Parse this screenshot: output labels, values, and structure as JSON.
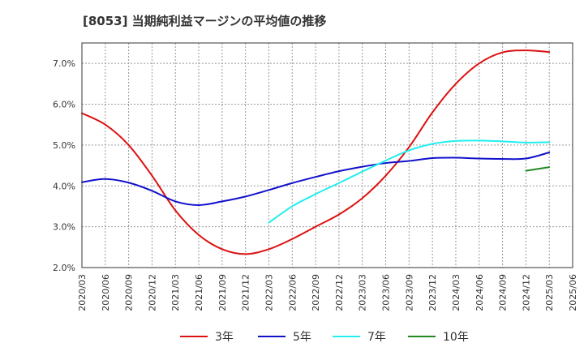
{
  "chart_data": {
    "type": "line",
    "title": "[8053]  当期純利益マージンの平均値の推移",
    "xlabel": "",
    "ylabel": "",
    "ylim": [
      2.0,
      7.5
    ],
    "y_ticks": [
      2.0,
      3.0,
      4.0,
      5.0,
      6.0,
      7.0
    ],
    "y_tick_labels": [
      "2.0%",
      "3.0%",
      "4.0%",
      "5.0%",
      "6.0%",
      "7.0%"
    ],
    "x_ticks": [
      "2020/03",
      "2020/06",
      "2020/09",
      "2020/12",
      "2021/03",
      "2021/06",
      "2021/09",
      "2021/12",
      "2022/03",
      "2022/06",
      "2022/09",
      "2022/12",
      "2023/03",
      "2023/06",
      "2023/09",
      "2023/12",
      "2024/03",
      "2024/06",
      "2024/09",
      "2024/12",
      "2025/03",
      "2025/06"
    ],
    "grid": true,
    "legend_position": "bottom",
    "series": [
      {
        "name": "3年",
        "color": "#dd1111",
        "x": [
          "2020/03",
          "2020/06",
          "2020/09",
          "2020/12",
          "2021/03",
          "2021/06",
          "2021/09",
          "2021/12",
          "2022/03",
          "2022/06",
          "2022/09",
          "2022/12",
          "2023/03",
          "2023/06",
          "2023/09",
          "2023/12",
          "2024/03",
          "2024/06",
          "2024/09",
          "2024/12",
          "2025/03"
        ],
        "values": [
          5.78,
          5.5,
          5.0,
          4.25,
          3.4,
          2.8,
          2.45,
          2.33,
          2.45,
          2.7,
          3.0,
          3.3,
          3.7,
          4.25,
          4.95,
          5.8,
          6.5,
          7.0,
          7.27,
          7.32,
          7.28
        ]
      },
      {
        "name": "5年",
        "color": "#1111cc",
        "x": [
          "2020/03",
          "2020/06",
          "2020/09",
          "2020/12",
          "2021/03",
          "2021/06",
          "2021/09",
          "2021/12",
          "2022/03",
          "2022/06",
          "2022/09",
          "2022/12",
          "2023/03",
          "2023/06",
          "2023/09",
          "2023/12",
          "2024/03",
          "2024/06",
          "2024/09",
          "2024/12",
          "2025/03"
        ],
        "values": [
          4.09,
          4.17,
          4.08,
          3.88,
          3.62,
          3.53,
          3.62,
          3.74,
          3.9,
          4.07,
          4.22,
          4.36,
          4.47,
          4.56,
          4.61,
          4.68,
          4.69,
          4.67,
          4.66,
          4.67,
          4.82
        ]
      },
      {
        "name": "7年",
        "color": "#22eeee",
        "x": [
          "2022/03",
          "2022/06",
          "2022/09",
          "2022/12",
          "2023/03",
          "2023/06",
          "2023/09",
          "2023/12",
          "2024/03",
          "2024/06",
          "2024/09",
          "2024/12",
          "2025/03"
        ],
        "values": [
          3.1,
          3.5,
          3.8,
          4.07,
          4.35,
          4.62,
          4.87,
          5.03,
          5.1,
          5.11,
          5.09,
          5.06,
          5.07
        ]
      },
      {
        "name": "10年",
        "color": "#228822",
        "x": [
          "2024/12",
          "2025/03"
        ],
        "values": [
          4.37,
          4.46
        ]
      }
    ]
  }
}
